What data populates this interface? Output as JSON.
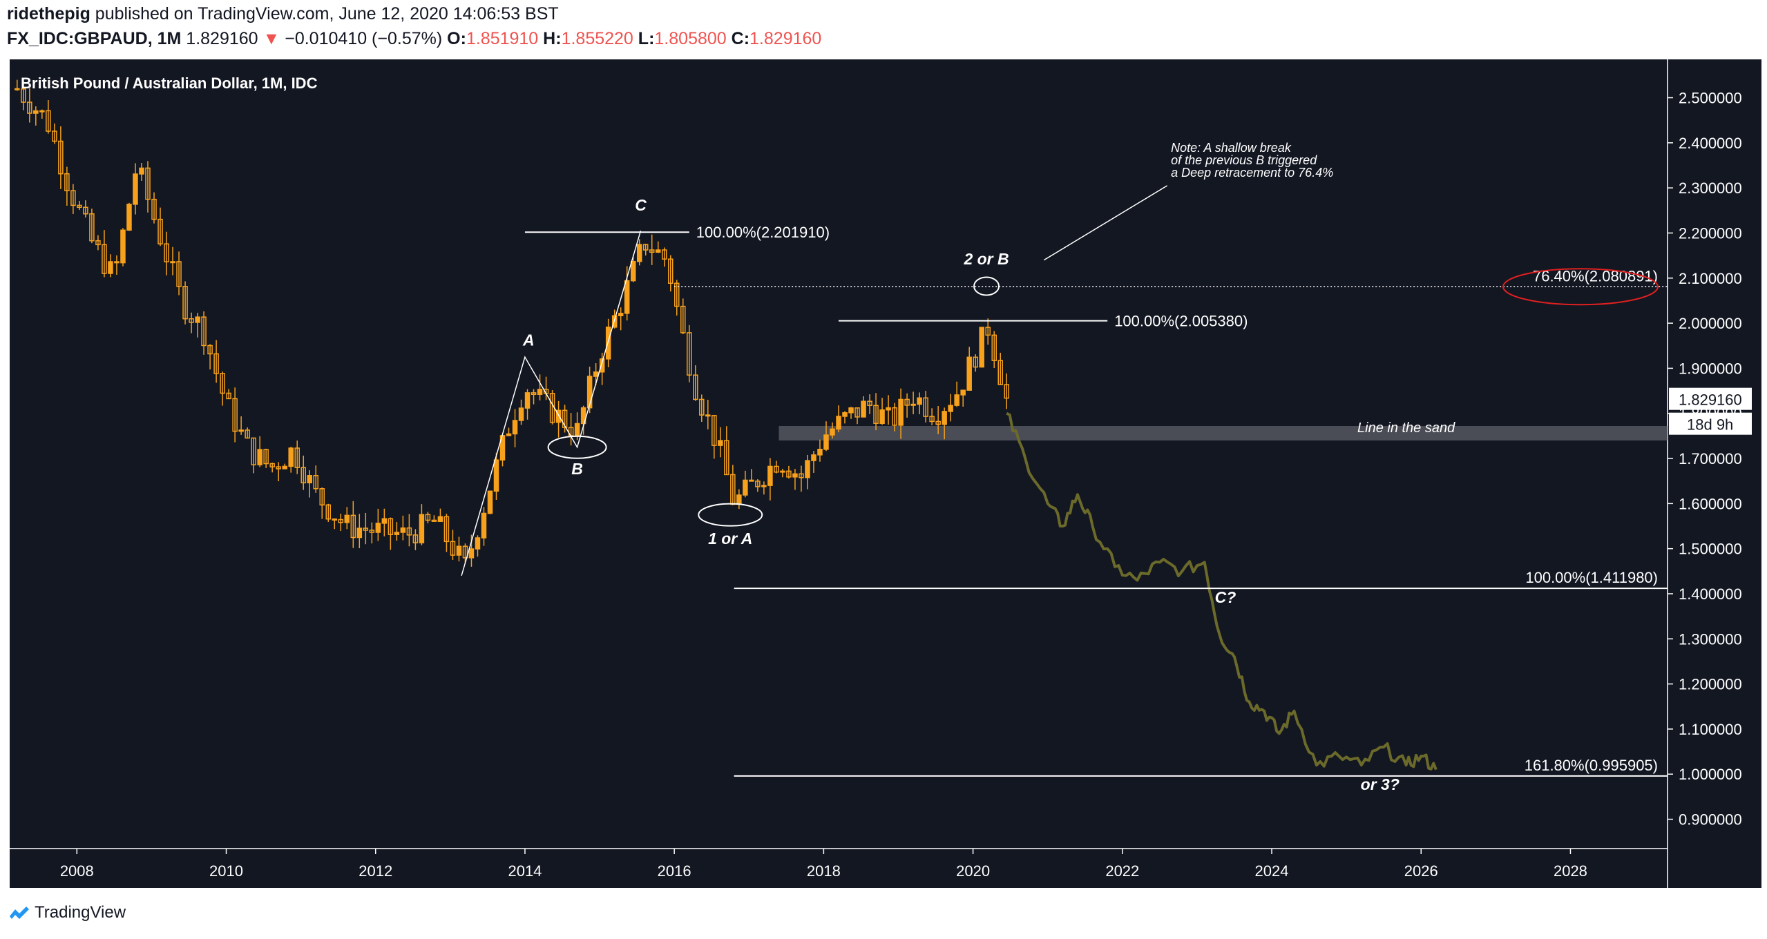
{
  "header": {
    "author": "ridethepig",
    "published": "published on TradingView.com, June 12, 2020 14:06:53 BST",
    "symbol": "FX_IDC:GBPAUD, 1M",
    "last": "1.829160",
    "arrow": "▼",
    "change": "−0.010410 (−0.57%)",
    "o_label": "O:",
    "o_value": "1.851910",
    "h_label": "H:",
    "h_value": "1.855220",
    "l_label": "L:",
    "l_value": "1.805800",
    "c_label": "C:",
    "c_value": "1.829160"
  },
  "footer": {
    "brand": "TradingView"
  },
  "colors": {
    "background": "#131722",
    "candle": "#f7a11c",
    "projection": "#6b6a2a",
    "text": "#ffffff",
    "price_tag": "#ffffff",
    "ellipse_red": "#e0201f"
  },
  "chart_data": {
    "type": "candlestick",
    "title": "British Pound / Australian Dollar, 1M, IDC",
    "x_range": [
      2007.1,
      2029.3
    ],
    "y_range": [
      0.835,
      2.585
    ],
    "x_ticks": [
      "2008",
      "2010",
      "2012",
      "2014",
      "2016",
      "2018",
      "2020",
      "2022",
      "2024",
      "2026",
      "2028"
    ],
    "y_ticks": [
      "2.500000",
      "2.400000",
      "2.300000",
      "2.200000",
      "2.100000",
      "2.000000",
      "1.900000",
      "1.800000",
      "1.700000",
      "1.600000",
      "1.500000",
      "1.400000",
      "1.300000",
      "1.200000",
      "1.100000",
      "1.000000",
      "0.900000"
    ],
    "current_price": "1.829160",
    "countdown": "18d 9h",
    "price_anchors": [
      [
        2007.2,
        2.52
      ],
      [
        2007.6,
        2.45
      ],
      [
        2007.9,
        2.3
      ],
      [
        2008.2,
        2.18
      ],
      [
        2008.5,
        2.1
      ],
      [
        2008.8,
        2.35
      ],
      [
        2009.1,
        2.2
      ],
      [
        2009.4,
        2.05
      ],
      [
        2009.7,
        1.98
      ],
      [
        2010.0,
        1.82
      ],
      [
        2010.3,
        1.72
      ],
      [
        2010.6,
        1.68
      ],
      [
        2010.9,
        1.72
      ],
      [
        2011.2,
        1.62
      ],
      [
        2011.6,
        1.55
      ],
      [
        2012.0,
        1.54
      ],
      [
        2012.4,
        1.53
      ],
      [
        2012.8,
        1.56
      ],
      [
        2013.2,
        1.46
      ],
      [
        2013.5,
        1.62
      ],
      [
        2013.8,
        1.78
      ],
      [
        2014.0,
        1.86
      ],
      [
        2014.4,
        1.8
      ],
      [
        2014.7,
        1.76
      ],
      [
        2015.0,
        1.93
      ],
      [
        2015.3,
        2.05
      ],
      [
        2015.6,
        2.18
      ],
      [
        2015.9,
        2.14
      ],
      [
        2016.1,
        1.98
      ],
      [
        2016.3,
        1.85
      ],
      [
        2016.6,
        1.72
      ],
      [
        2016.8,
        1.6
      ],
      [
        2017.1,
        1.65
      ],
      [
        2017.4,
        1.7
      ],
      [
        2017.7,
        1.66
      ],
      [
        2018.0,
        1.75
      ],
      [
        2018.3,
        1.79
      ],
      [
        2018.6,
        1.82
      ],
      [
        2018.9,
        1.78
      ],
      [
        2019.2,
        1.84
      ],
      [
        2019.5,
        1.8
      ],
      [
        2019.8,
        1.85
      ],
      [
        2020.0,
        1.92
      ],
      [
        2020.2,
        1.99
      ],
      [
        2020.35,
        1.9
      ],
      [
        2020.45,
        1.83
      ]
    ],
    "projection": [
      [
        2020.45,
        1.8
      ],
      [
        2020.7,
        1.7
      ],
      [
        2021.0,
        1.6
      ],
      [
        2021.2,
        1.55
      ],
      [
        2021.4,
        1.62
      ],
      [
        2021.6,
        1.55
      ],
      [
        2021.9,
        1.46
      ],
      [
        2022.2,
        1.43
      ],
      [
        2022.5,
        1.47
      ],
      [
        2022.8,
        1.45
      ],
      [
        2023.1,
        1.47
      ],
      [
        2023.3,
        1.31
      ],
      [
        2023.5,
        1.26
      ],
      [
        2023.7,
        1.16
      ],
      [
        2023.9,
        1.14
      ],
      [
        2024.1,
        1.09
      ],
      [
        2024.3,
        1.14
      ],
      [
        2024.6,
        1.02
      ],
      [
        2024.9,
        1.04
      ],
      [
        2025.2,
        1.02
      ],
      [
        2025.5,
        1.06
      ],
      [
        2025.8,
        1.02
      ],
      [
        2026.0,
        1.04
      ],
      [
        2026.2,
        1.01
      ]
    ],
    "fib_levels": [
      {
        "label": "100.00%(2.201910)",
        "value": 2.20191,
        "from": 2014.0,
        "to": 2016.2
      },
      {
        "label": "100.00%(2.005380)",
        "value": 2.00538,
        "from": 2018.2,
        "to": 2021.8
      },
      {
        "label": "76.40%(2.080891)",
        "value": 2.080891,
        "from": 2016.0,
        "to": 2029.3
      },
      {
        "label": "100.00%(1.411980)",
        "value": 1.41198,
        "from": 2016.8,
        "to": 2029.3
      },
      {
        "label": "161.80%(0.995905)",
        "value": 0.995905,
        "from": 2016.8,
        "to": 2029.3
      }
    ],
    "annotations": {
      "wave_a": "A",
      "wave_b": "B",
      "wave_c": "C",
      "wave_1a": "1 or A",
      "wave_2b": "2 or B",
      "wave_c2": "C?",
      "wave_3": "or 3?",
      "line_in_sand": "Line in the sand",
      "note": [
        "Note: A shallow break",
        "of the previous B triggered",
        "a Deep retracement to 76.4%"
      ]
    }
  }
}
